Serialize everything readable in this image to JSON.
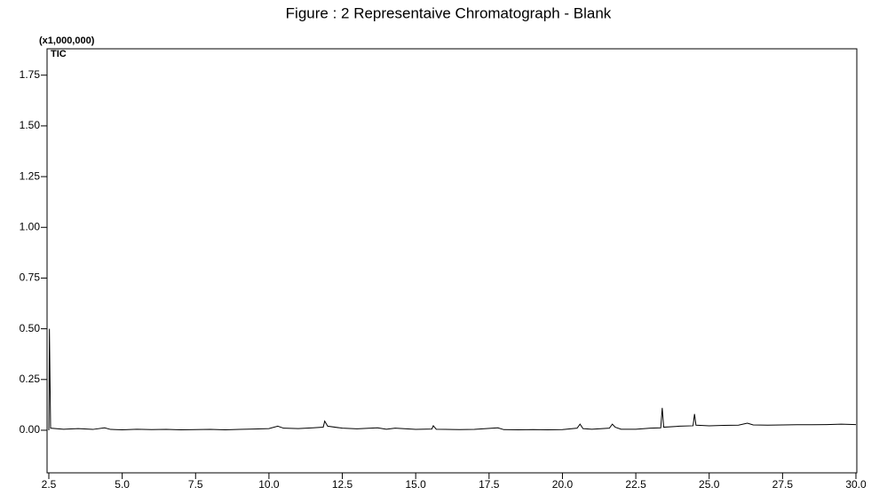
{
  "chart_data": {
    "type": "line",
    "title": "Figure : 2  Representaive Chromatograph - Blank",
    "y_label": "(x1,000,000)",
    "annotation": "TIC",
    "color": "#000000",
    "x": [
      2.5,
      2.52,
      2.56,
      3.0,
      3.5,
      4.0,
      4.4,
      4.6,
      5.0,
      5.5,
      6.0,
      6.5,
      7.0,
      7.5,
      8.0,
      8.5,
      9.0,
      9.5,
      10.0,
      10.3,
      10.5,
      11.0,
      11.5,
      11.85,
      11.9,
      12.0,
      12.5,
      13.0,
      13.7,
      14.0,
      14.3,
      15.0,
      15.55,
      15.6,
      15.7,
      16.0,
      16.5,
      17.0,
      17.8,
      18.0,
      18.5,
      19.0,
      19.5,
      20.0,
      20.5,
      20.6,
      20.7,
      21.0,
      21.6,
      21.7,
      21.8,
      22.0,
      22.5,
      23.0,
      23.35,
      23.4,
      23.45,
      24.0,
      24.45,
      24.5,
      24.55,
      25.0,
      25.5,
      26.0,
      26.3,
      26.5,
      27.0,
      27.5,
      28.0,
      28.5,
      29.0,
      29.5,
      30.0
    ],
    "values": [
      0.0,
      0.5,
      0.01,
      0.005,
      0.008,
      0.004,
      0.012,
      0.004,
      0.002,
      0.005,
      0.003,
      0.004,
      0.002,
      0.003,
      0.004,
      0.002,
      0.004,
      0.006,
      0.008,
      0.02,
      0.01,
      0.008,
      0.012,
      0.015,
      0.045,
      0.02,
      0.01,
      0.007,
      0.012,
      0.005,
      0.01,
      0.004,
      0.006,
      0.022,
      0.005,
      0.004,
      0.003,
      0.004,
      0.012,
      0.003,
      0.002,
      0.003,
      0.002,
      0.003,
      0.01,
      0.03,
      0.008,
      0.005,
      0.01,
      0.03,
      0.015,
      0.005,
      0.005,
      0.01,
      0.012,
      0.11,
      0.015,
      0.02,
      0.022,
      0.08,
      0.025,
      0.022,
      0.024,
      0.025,
      0.035,
      0.026,
      0.025,
      0.026,
      0.027,
      0.027,
      0.028,
      0.03,
      0.028
    ],
    "xlim": [
      2.5,
      30.0
    ],
    "xticks": [
      2.5,
      {
        "value": 5,
        "label": "5.0"
      },
      7.5,
      {
        "value": 10,
        "label": "10.0"
      },
      12.5,
      {
        "value": 15,
        "label": "15.0"
      },
      17.5,
      {
        "value": 20,
        "label": "20.0"
      },
      22.5,
      {
        "value": 25,
        "label": "25.0"
      },
      27.5,
      {
        "value": 30,
        "label": "30.0"
      }
    ],
    "ylim": [
      -0.21,
      1.88
    ],
    "yticks": [
      {
        "value": 0,
        "label": "0.00"
      },
      0.25,
      {
        "value": 0.5,
        "label": "0.50"
      },
      0.75,
      {
        "value": 1,
        "label": "1.00"
      },
      1.25,
      {
        "value": 1.5,
        "label": "1.50"
      },
      1.75
    ]
  }
}
